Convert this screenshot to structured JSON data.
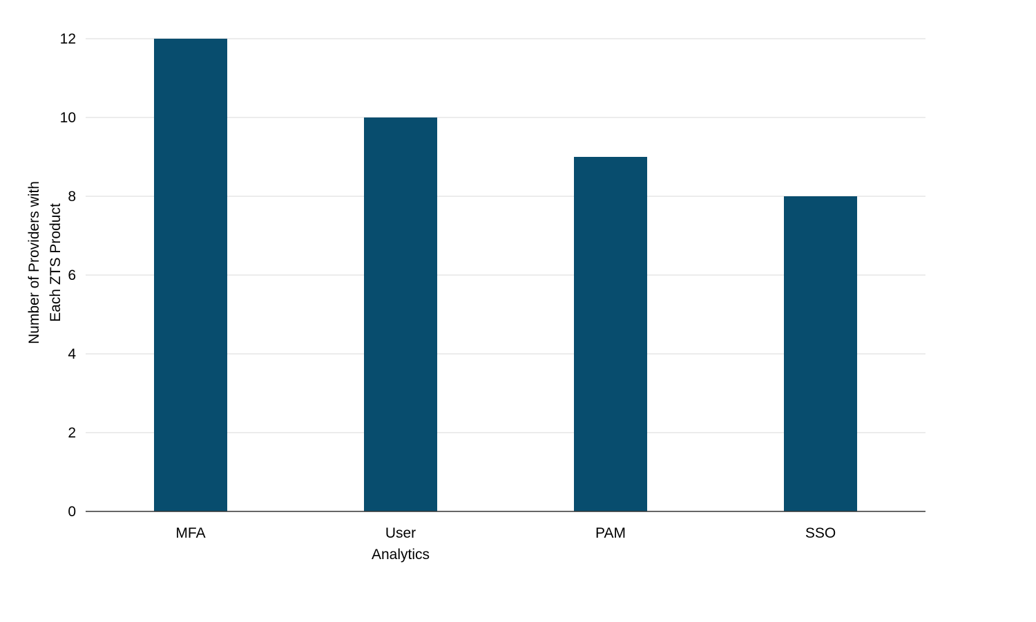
{
  "chart_data": {
    "type": "bar",
    "categories": [
      [
        "MFA"
      ],
      [
        "User",
        "Analytics"
      ],
      [
        "PAM"
      ],
      [
        "SSO"
      ]
    ],
    "values": [
      12,
      10,
      9,
      8
    ],
    "ylabel": [
      "Number of Providers with",
      "Each ZTS Product"
    ],
    "xlabel": "",
    "ylim": [
      0,
      12
    ],
    "yticks": [
      0,
      2,
      4,
      6,
      8,
      10,
      12
    ],
    "grid": true,
    "legend": "none",
    "bar_color": "#084d6e",
    "grid_color": "#e6e6e6",
    "axis_color": "#333333"
  }
}
